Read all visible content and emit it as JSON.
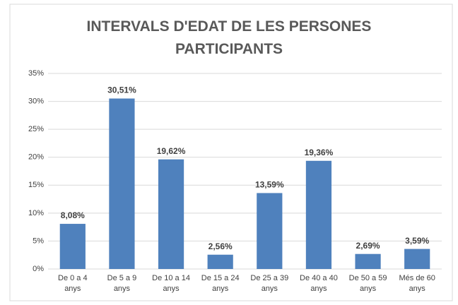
{
  "chart_data": {
    "type": "bar",
    "title": "INTERVALS D'EDAT DE LES PERSONES PARTICIPANTS",
    "categories": [
      "De 0 a 4 anys",
      "De 5 a 9 anys",
      "De 10 a 14 anys",
      "De 15 a 24 anys",
      "De 25 a 39 anys",
      "De 40 a 40 anys",
      "De 50 a 59 anys",
      "Més de 60 anys"
    ],
    "values": [
      8.08,
      30.51,
      19.62,
      2.56,
      13.59,
      19.36,
      2.69,
      3.59
    ],
    "value_labels": [
      "8,08%",
      "30,51%",
      "19,62%",
      "2,56%",
      "13,59%",
      "19,36%",
      "2,69%",
      "3,59%"
    ],
    "color": "#4f81bd",
    "ylim": [
      0,
      35
    ],
    "yticks": [
      {
        "value": 0,
        "label": "0%"
      },
      {
        "value": 5,
        "label": "5%"
      },
      {
        "value": 10,
        "label": "10%"
      },
      {
        "value": 15,
        "label": "15%"
      },
      {
        "value": 20,
        "label": "20%"
      },
      {
        "value": 25,
        "label": "25%"
      },
      {
        "value": 30,
        "label": "30%"
      },
      {
        "value": 35,
        "label": "35%"
      }
    ],
    "grid": true
  }
}
